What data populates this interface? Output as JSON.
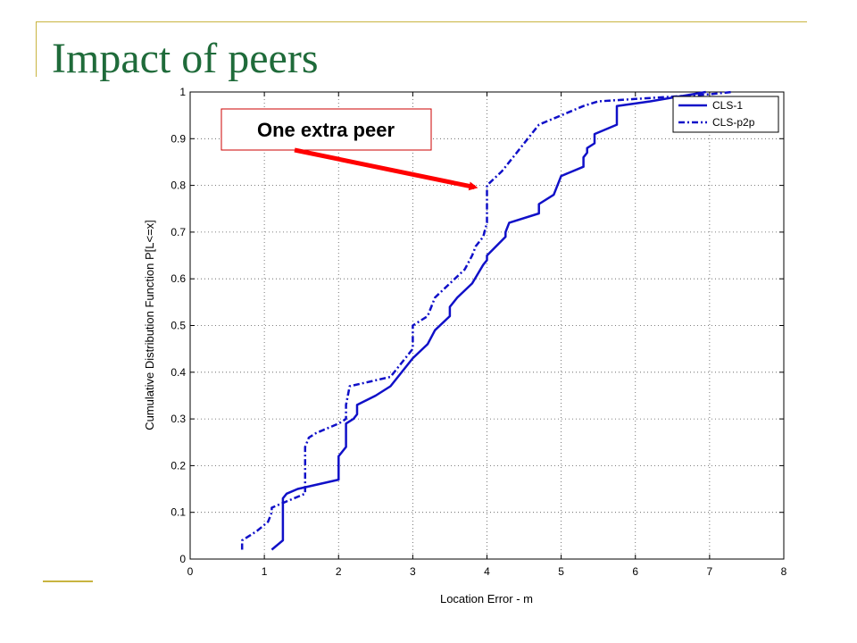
{
  "slide": {
    "title": "Impact of peers",
    "decor_color": "#c8b440",
    "title_color": "#1f6b3a"
  },
  "chart_data": {
    "type": "line",
    "title": "",
    "xlabel": "Location Error - m",
    "ylabel": "Cumulative Distribution Function P[L<=x]",
    "xlim": [
      0,
      8
    ],
    "ylim": [
      0,
      1
    ],
    "xticks": [
      0,
      1,
      2,
      3,
      4,
      5,
      6,
      7,
      8
    ],
    "yticks": [
      0,
      0.1,
      0.2,
      0.3,
      0.4,
      0.5,
      0.6,
      0.7,
      0.8,
      0.9,
      1
    ],
    "grid": true,
    "legend": "top-right",
    "series": [
      {
        "name": "CLS-1",
        "style": "solid",
        "color": "#1010c8",
        "x": [
          1.1,
          1.25,
          1.25,
          1.3,
          1.45,
          2.0,
          2.0,
          2.1,
          2.1,
          2.2,
          2.25,
          2.25,
          2.5,
          2.7,
          3.0,
          3.2,
          3.3,
          3.5,
          3.5,
          3.6,
          3.8,
          3.95,
          4.0,
          4.0,
          4.25,
          4.25,
          4.3,
          4.7,
          4.7,
          4.9,
          5.0,
          5.3,
          5.3,
          5.35,
          5.35,
          5.45,
          5.45,
          5.75,
          5.75,
          6.2,
          6.95
        ],
        "y": [
          0.02,
          0.04,
          0.13,
          0.14,
          0.15,
          0.17,
          0.22,
          0.24,
          0.29,
          0.3,
          0.31,
          0.33,
          0.35,
          0.37,
          0.43,
          0.46,
          0.49,
          0.52,
          0.54,
          0.56,
          0.59,
          0.63,
          0.64,
          0.65,
          0.69,
          0.7,
          0.72,
          0.74,
          0.76,
          0.78,
          0.82,
          0.84,
          0.86,
          0.87,
          0.88,
          0.89,
          0.91,
          0.93,
          0.97,
          0.98,
          1.0
        ]
      },
      {
        "name": "CLS-p2p",
        "style": "dash-dot",
        "color": "#1010c8",
        "x": [
          0.7,
          0.7,
          0.9,
          1.05,
          1.1,
          1.1,
          1.25,
          1.55,
          1.55,
          1.6,
          1.7,
          2.0,
          2.1,
          2.1,
          2.15,
          2.7,
          2.95,
          3.0,
          3.0,
          3.2,
          3.3,
          3.5,
          3.7,
          3.8,
          3.85,
          3.95,
          4.0,
          4.0,
          4.2,
          4.4,
          4.5,
          4.7,
          5.0,
          5.3,
          5.5,
          6.0,
          6.5,
          7.0,
          7.3
        ],
        "y": [
          0.02,
          0.04,
          0.06,
          0.08,
          0.1,
          0.11,
          0.12,
          0.14,
          0.24,
          0.26,
          0.27,
          0.29,
          0.3,
          0.33,
          0.37,
          0.39,
          0.44,
          0.45,
          0.5,
          0.52,
          0.56,
          0.59,
          0.62,
          0.65,
          0.67,
          0.69,
          0.72,
          0.8,
          0.83,
          0.87,
          0.89,
          0.93,
          0.95,
          0.97,
          0.98,
          0.985,
          0.99,
          0.995,
          1.0
        ]
      }
    ],
    "annotation": {
      "text": "One extra peer",
      "box_color": "#cc0000",
      "arrow_color": "#ff0000",
      "points_to": [
        4.0,
        0.8
      ]
    }
  }
}
